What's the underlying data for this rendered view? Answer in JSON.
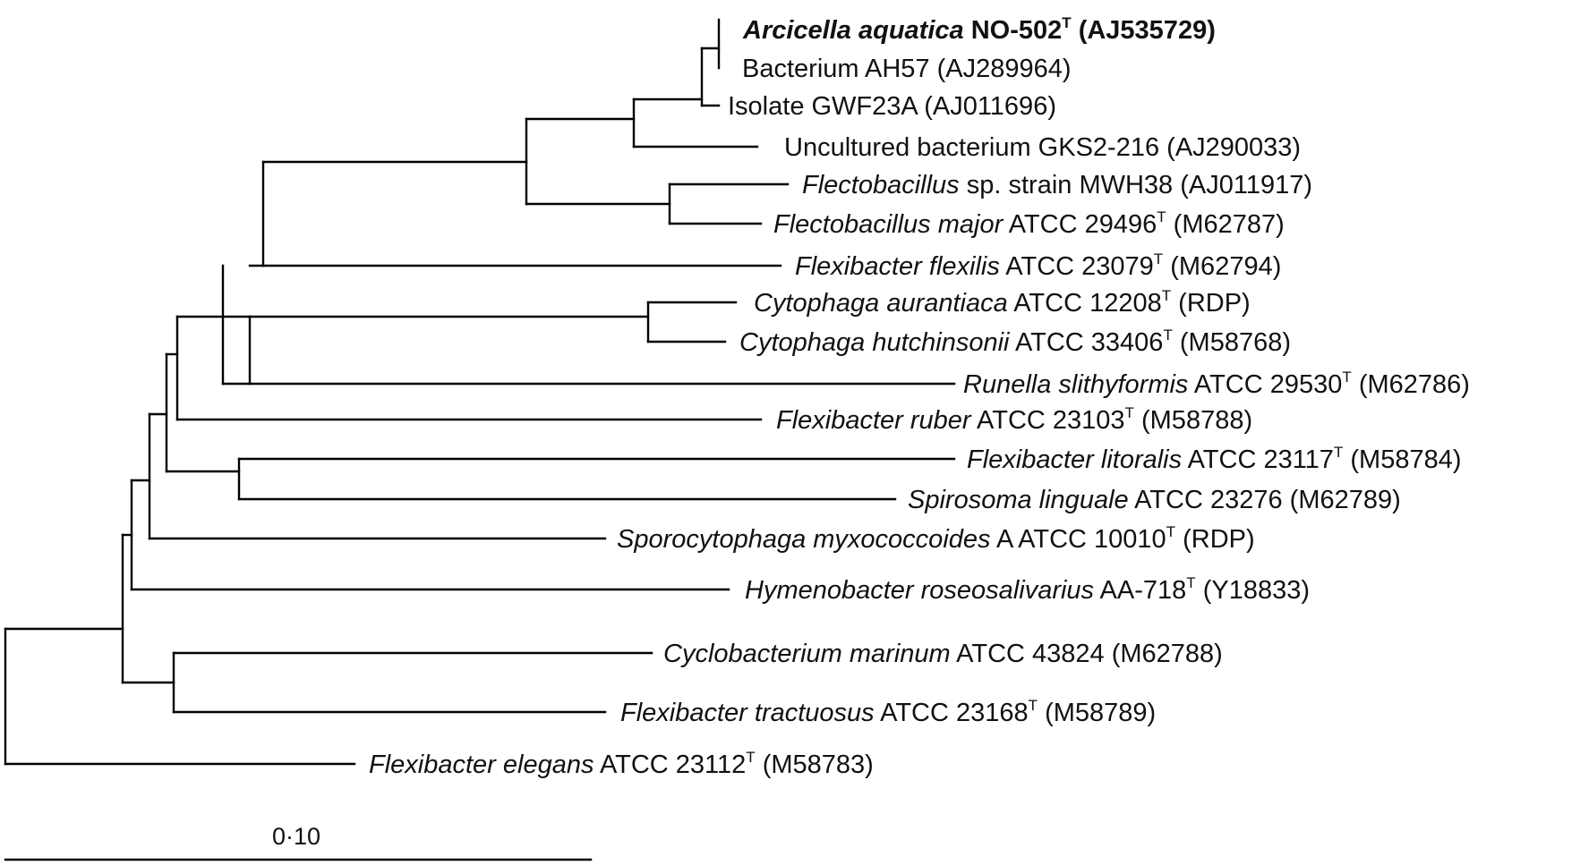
{
  "scale_bar": {
    "label": "0·10"
  },
  "taxa": [
    {
      "id": "arcicella",
      "bold": true,
      "parts": [
        {
          "t": "Arcicella aquatica",
          "i": true
        },
        {
          "t": " NO-502"
        },
        {
          "t": "T",
          "sup": true
        },
        {
          "t": " (AJ535729)"
        }
      ]
    },
    {
      "id": "ah57",
      "parts": [
        {
          "t": "Bacterium AH57 (AJ289964)"
        }
      ]
    },
    {
      "id": "gwf23a",
      "parts": [
        {
          "t": "Isolate GWF23A (AJ011696)"
        }
      ]
    },
    {
      "id": "gks2",
      "parts": [
        {
          "t": "Uncultured bacterium GKS2-216 (AJ290033)"
        }
      ]
    },
    {
      "id": "mwh38",
      "parts": [
        {
          "t": "Flectobacillus",
          "i": true
        },
        {
          "t": " sp. strain MWH38 (AJ011917)"
        }
      ]
    },
    {
      "id": "fmajor",
      "parts": [
        {
          "t": "Flectobacillus major",
          "i": true
        },
        {
          "t": " ATCC 29496"
        },
        {
          "t": "T",
          "sup": true
        },
        {
          "t": " (M62787)"
        }
      ]
    },
    {
      "id": "fflexilis",
      "parts": [
        {
          "t": "Flexibacter flexilis",
          "i": true
        },
        {
          "t": " ATCC 23079"
        },
        {
          "t": "T",
          "sup": true
        },
        {
          "t": " (M62794)"
        }
      ]
    },
    {
      "id": "caurantiaca",
      "parts": [
        {
          "t": "Cytophaga aurantiaca",
          "i": true
        },
        {
          "t": " ATCC 12208"
        },
        {
          "t": "T",
          "sup": true
        },
        {
          "t": " (RDP)"
        }
      ]
    },
    {
      "id": "chutch",
      "parts": [
        {
          "t": "Cytophaga hutchinsonii",
          "i": true
        },
        {
          "t": " ATCC 33406"
        },
        {
          "t": "T",
          "sup": true
        },
        {
          "t": " (M58768)"
        }
      ]
    },
    {
      "id": "runella",
      "parts": [
        {
          "t": "Runella slithyformis",
          "i": true
        },
        {
          "t": " ATCC 29530"
        },
        {
          "t": "T",
          "sup": true
        },
        {
          "t": " (M62786)"
        }
      ]
    },
    {
      "id": "fruber",
      "parts": [
        {
          "t": "Flexibacter ruber",
          "i": true
        },
        {
          "t": " ATCC 23103"
        },
        {
          "t": "T",
          "sup": true
        },
        {
          "t": " (M58788)"
        }
      ]
    },
    {
      "id": "flitoralis",
      "parts": [
        {
          "t": "Flexibacter litoralis",
          "i": true
        },
        {
          "t": " ATCC 23117"
        },
        {
          "t": "T",
          "sup": true
        },
        {
          "t": " (M58784)"
        }
      ]
    },
    {
      "id": "spirosoma",
      "parts": [
        {
          "t": "Spirosoma linguale",
          "i": true
        },
        {
          "t": " ATCC 23276 (M62789)"
        }
      ]
    },
    {
      "id": "sporocyt",
      "parts": [
        {
          "t": "Sporocytophaga myxococcoides",
          "i": true
        },
        {
          "t": " A ATCC 10010"
        },
        {
          "t": "T",
          "sup": true
        },
        {
          "t": " (RDP)"
        }
      ]
    },
    {
      "id": "hymeno",
      "parts": [
        {
          "t": "Hymenobacter roseosalivarius",
          "i": true
        },
        {
          "t": " AA-718"
        },
        {
          "t": "T",
          "sup": true
        },
        {
          "t": " (Y18833)"
        }
      ]
    },
    {
      "id": "cyclo",
      "parts": [
        {
          "t": "Cyclobacterium marinum",
          "i": true
        },
        {
          "t": " ATCC 43824 (M62788)"
        }
      ]
    },
    {
      "id": "ftract",
      "parts": [
        {
          "t": "Flexibacter tractuosus",
          "i": true
        },
        {
          "t": " ATCC 23168"
        },
        {
          "t": "T",
          "sup": true
        },
        {
          "t": " (M58789)"
        }
      ]
    },
    {
      "id": "felegans",
      "parts": [
        {
          "t": "Flexibacter elegans",
          "i": true
        },
        {
          "t": " ATCC 23112"
        },
        {
          "t": "T",
          "sup": true
        },
        {
          "t": " (M58783)"
        }
      ]
    }
  ]
}
